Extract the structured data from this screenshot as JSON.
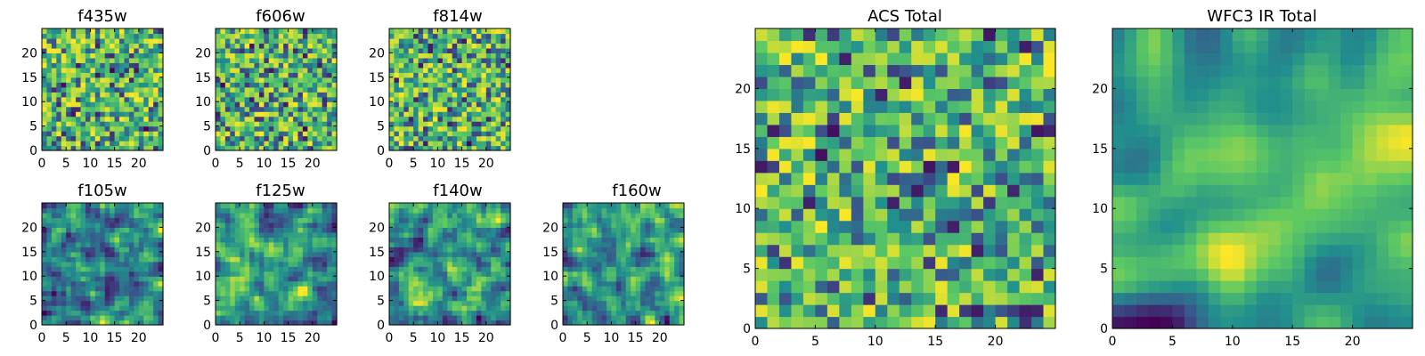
{
  "chart_data": [
    {
      "type": "heatmap",
      "title": "f435w",
      "xlim": [
        0,
        25
      ],
      "ylim": [
        0,
        25
      ],
      "xticks": [
        "0",
        "5",
        "10",
        "15",
        "20"
      ],
      "yticks": [
        "0",
        "5",
        "10",
        "15",
        "20"
      ],
      "seed": 11,
      "style": "noise"
    },
    {
      "type": "heatmap",
      "title": "f606w",
      "xlim": [
        0,
        25
      ],
      "ylim": [
        0,
        25
      ],
      "xticks": [
        "0",
        "5",
        "10",
        "15",
        "20"
      ],
      "yticks": [
        "0",
        "5",
        "10",
        "15",
        "20"
      ],
      "seed": 23,
      "style": "noise"
    },
    {
      "type": "heatmap",
      "title": "f814w",
      "xlim": [
        0,
        25
      ],
      "ylim": [
        0,
        25
      ],
      "xticks": [
        "0",
        "5",
        "10",
        "15",
        "20"
      ],
      "yticks": [
        "0",
        "5",
        "10",
        "15",
        "20"
      ],
      "seed": 37,
      "style": "noise"
    },
    {
      "type": "heatmap",
      "title": "f105w",
      "xlim": [
        0,
        25
      ],
      "ylim": [
        0,
        25
      ],
      "xticks": [
        "0",
        "5",
        "10",
        "15",
        "20"
      ],
      "yticks": [
        "0",
        "5",
        "10",
        "15",
        "20"
      ],
      "seed": 41,
      "style": "smooth"
    },
    {
      "type": "heatmap",
      "title": "f125w",
      "xlim": [
        0,
        25
      ],
      "ylim": [
        0,
        25
      ],
      "xticks": [
        "0",
        "5",
        "10",
        "15",
        "20"
      ],
      "yticks": [
        "0",
        "5",
        "10",
        "15",
        "20"
      ],
      "seed": 53,
      "style": "smooth"
    },
    {
      "type": "heatmap",
      "title": "f140w",
      "xlim": [
        0,
        25
      ],
      "ylim": [
        0,
        25
      ],
      "xticks": [
        "0",
        "5",
        "10",
        "15",
        "20"
      ],
      "yticks": [
        "0",
        "5",
        "10",
        "15",
        "20"
      ],
      "seed": 67,
      "style": "smooth"
    },
    {
      "type": "heatmap",
      "title": "f160w",
      "xlim": [
        0,
        25
      ],
      "ylim": [
        0,
        25
      ],
      "xticks": [
        "0",
        "5",
        "10",
        "15",
        "20"
      ],
      "yticks": [
        "0",
        "5",
        "10",
        "15",
        "20"
      ],
      "seed": 79,
      "style": "smooth"
    },
    {
      "type": "heatmap",
      "title": "ACS Total",
      "xlim": [
        0,
        25
      ],
      "ylim": [
        0,
        25
      ],
      "xticks": [
        "0",
        "5",
        "10",
        "15",
        "20"
      ],
      "yticks": [
        "0",
        "5",
        "10",
        "15",
        "20"
      ],
      "seed": 83,
      "style": "total"
    },
    {
      "type": "heatmap",
      "title": "WFC3 IR Total",
      "xlim": [
        0,
        25
      ],
      "ylim": [
        0,
        25
      ],
      "xticks": [
        "0",
        "5",
        "10",
        "15",
        "20"
      ],
      "yticks": [
        "0",
        "5",
        "10",
        "15",
        "20"
      ],
      "seed": 97,
      "style": "smoothtotal"
    }
  ],
  "colormap": [
    "#440154",
    "#3b528b",
    "#21908d",
    "#5dc963",
    "#fde725"
  ]
}
